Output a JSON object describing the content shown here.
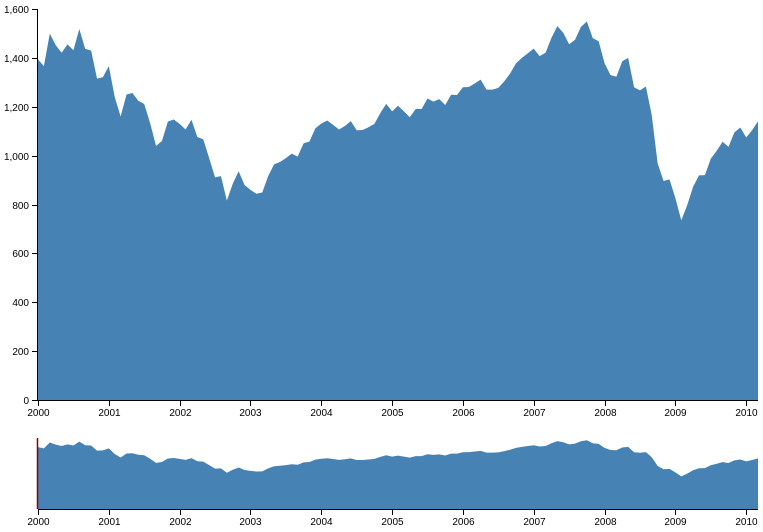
{
  "chart_data": [
    {
      "type": "area",
      "role": "focus",
      "xlabel": "",
      "ylabel": "",
      "title": "",
      "ylim": [
        0,
        1600
      ],
      "xlim": [
        "2000-01",
        "2010-03"
      ],
      "yticks": [
        "0",
        "200",
        "400",
        "600",
        "800",
        "1,000",
        "1,200",
        "1,400",
        "1,600"
      ],
      "xticks": [
        "2000",
        "2001",
        "2002",
        "2003",
        "2004",
        "2005",
        "2006",
        "2007",
        "2008",
        "2009",
        "2010"
      ],
      "grid": false,
      "color": "#4682b4",
      "x": [
        "2000-01",
        "2000-02",
        "2000-03",
        "2000-04",
        "2000-05",
        "2000-06",
        "2000-07",
        "2000-08",
        "2000-09",
        "2000-10",
        "2000-11",
        "2000-12",
        "2001-01",
        "2001-02",
        "2001-03",
        "2001-04",
        "2001-05",
        "2001-06",
        "2001-07",
        "2001-08",
        "2001-09",
        "2001-10",
        "2001-11",
        "2001-12",
        "2002-01",
        "2002-02",
        "2002-03",
        "2002-04",
        "2002-05",
        "2002-06",
        "2002-07",
        "2002-08",
        "2002-09",
        "2002-10",
        "2002-11",
        "2002-12",
        "2003-01",
        "2003-02",
        "2003-03",
        "2003-04",
        "2003-05",
        "2003-06",
        "2003-07",
        "2003-08",
        "2003-09",
        "2003-10",
        "2003-11",
        "2003-12",
        "2004-01",
        "2004-02",
        "2004-03",
        "2004-04",
        "2004-05",
        "2004-06",
        "2004-07",
        "2004-08",
        "2004-09",
        "2004-10",
        "2004-11",
        "2004-12",
        "2005-01",
        "2005-02",
        "2005-03",
        "2005-04",
        "2005-05",
        "2005-06",
        "2005-07",
        "2005-08",
        "2005-09",
        "2005-10",
        "2005-11",
        "2005-12",
        "2006-01",
        "2006-02",
        "2006-03",
        "2006-04",
        "2006-05",
        "2006-06",
        "2006-07",
        "2006-08",
        "2006-09",
        "2006-10",
        "2006-11",
        "2006-12",
        "2007-01",
        "2007-02",
        "2007-03",
        "2007-04",
        "2007-05",
        "2007-06",
        "2007-07",
        "2007-08",
        "2007-09",
        "2007-10",
        "2007-11",
        "2007-12",
        "2008-01",
        "2008-02",
        "2008-03",
        "2008-04",
        "2008-05",
        "2008-06",
        "2008-07",
        "2008-08",
        "2008-09",
        "2008-10",
        "2008-11",
        "2008-12",
        "2009-01",
        "2009-02",
        "2009-03",
        "2009-04",
        "2009-05",
        "2009-06",
        "2009-07",
        "2009-08",
        "2009-09",
        "2009-10",
        "2009-11",
        "2009-12",
        "2010-01",
        "2010-02",
        "2010-03"
      ],
      "y": [
        1394,
        1366,
        1499,
        1452,
        1421,
        1455,
        1431,
        1518,
        1437,
        1430,
        1315,
        1321,
        1366,
        1240,
        1160,
        1250,
        1256,
        1224,
        1211,
        1133,
        1040,
        1060,
        1139,
        1148,
        1130,
        1107,
        1147,
        1076,
        1067,
        990,
        911,
        916,
        816,
        885,
        936,
        880,
        860,
        844,
        849,
        916,
        964,
        974,
        990,
        1008,
        996,
        1050,
        1058,
        1112,
        1131,
        1144,
        1126,
        1107,
        1121,
        1141,
        1104,
        1105,
        1116,
        1130,
        1174,
        1212,
        1181,
        1204,
        1181,
        1157,
        1191,
        1191,
        1234,
        1221,
        1231,
        1207,
        1249,
        1248,
        1280,
        1281,
        1295,
        1311,
        1270,
        1270,
        1277,
        1304,
        1336,
        1378,
        1400,
        1419,
        1438,
        1407,
        1421,
        1482,
        1530,
        1503,
        1455,
        1474,
        1527,
        1549,
        1481,
        1468,
        1378,
        1330,
        1323,
        1386,
        1400,
        1280,
        1267,
        1283,
        1165,
        968,
        896,
        903,
        826,
        735,
        797,
        872,
        919,
        920,
        987,
        1020,
        1057,
        1036,
        1095,
        1115,
        1074,
        1104,
        1140
      ]
    },
    {
      "type": "area",
      "role": "context",
      "ylim": [
        0,
        1600
      ],
      "xticks": [
        "2000",
        "2001",
        "2002",
        "2003",
        "2004",
        "2005",
        "2006",
        "2007",
        "2008",
        "2009",
        "2010"
      ],
      "color": "#4682b4",
      "brush_color": "#8b0000"
    }
  ]
}
